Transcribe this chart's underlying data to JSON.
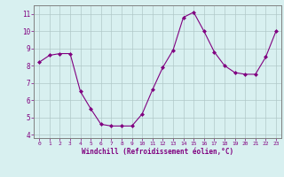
{
  "x": [
    0,
    1,
    2,
    3,
    4,
    5,
    6,
    7,
    8,
    9,
    10,
    11,
    12,
    13,
    14,
    15,
    16,
    17,
    18,
    19,
    20,
    21,
    22,
    23
  ],
  "y": [
    8.2,
    8.6,
    8.7,
    8.7,
    6.5,
    5.5,
    4.6,
    4.5,
    4.5,
    4.5,
    5.2,
    6.6,
    7.9,
    8.9,
    10.8,
    11.1,
    10.0,
    8.8,
    8.0,
    7.6,
    7.5,
    7.5,
    8.5,
    10.0
  ],
  "line_color": "#800080",
  "marker": "D",
  "marker_size": 2,
  "bg_color": "#d8f0f0",
  "grid_color": "#b0c8c8",
  "xlabel": "Windchill (Refroidissement éolien,°C)",
  "xlim": [
    -0.5,
    23.5
  ],
  "ylim": [
    3.8,
    11.5
  ],
  "yticks": [
    4,
    5,
    6,
    7,
    8,
    9,
    10,
    11
  ],
  "xticks": [
    0,
    1,
    2,
    3,
    4,
    5,
    6,
    7,
    8,
    9,
    10,
    11,
    12,
    13,
    14,
    15,
    16,
    17,
    18,
    19,
    20,
    21,
    22,
    23
  ],
  "tick_color": "#800080",
  "label_color": "#800080",
  "spine_color": "#808080"
}
